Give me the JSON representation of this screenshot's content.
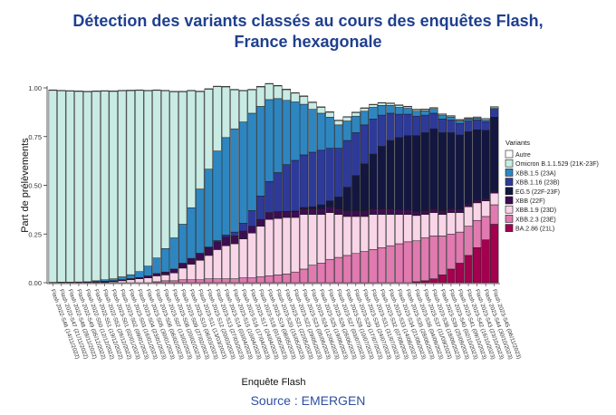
{
  "title_line1": "Détection des variants classés au cours des enquêtes Flash,",
  "title_line2": "France hexagonale",
  "source": "Source : EMERGEN",
  "colors": {
    "Autre": "#ffffff",
    "Omicron B.1.1.529 (21K-23F)": "#C8EBE3",
    "XBB.1.5 (23A)": "#2E86C1",
    "XBB.1.16 (23B)": "#2E3A9A",
    "EG.5 (22F-23F)": "#13173F",
    "XBB (22F)": "#3D0D52",
    "XBB.1.9 (23D)": "#F9D5E8",
    "XBB.2.3 (23E)": "#E07AB0",
    "BA.2.86 (21L)": "#A3004F"
  },
  "chart_data": {
    "type": "bar",
    "stacked": true,
    "xlabel": "Enquête Flash",
    "ylabel": "Part de prélèvements",
    "ylim": [
      0,
      1
    ],
    "yticks": [
      "0.00",
      "0.25",
      "0.50",
      "0.75",
      "1.00"
    ],
    "legend_title": "Variants",
    "legend_position": "right",
    "categories": [
      "Flash 2022-S46 (14/11/2022)",
      "Flash 2022-S47 (21/11/2022)",
      "Flash 2022-S48 (28/11/2022)",
      "Flash 2022-S49 (05/12/2022)",
      "Flash 2022-S50 (12/12/2022)",
      "Flash 2022-S51 (19/12/2022)",
      "Flash 2022-S52 (26/12/2022)",
      "Flash 2023-S01 (02/01/2023)",
      "Flash 2023-S02 (09/01/2023)",
      "Flash 2023-S03 (16/01/2023)",
      "Flash 2023-S04 (23/01/2023)",
      "Flash 2023-S05 (30/01/2023)",
      "Flash 2023-S06 (06/02/2023)",
      "Flash 2023-S07 (13/02/2023)",
      "Flash 2023-S08 (20/02/2023)",
      "Flash 2023-S09 (27/02/2023)",
      "Flash 2023-S10 (06/03/2023)",
      "Flash 2023-S11 (13/03/2023)",
      "Flash 2023-S12 (20/03/2023)",
      "Flash 2023-S13 (27/03/2023)",
      "Flash 2023-S14 (03/04/2023)",
      "Flash 2023-S15 (10/04/2023)",
      "Flash 2023-S16 (17/04/2023)",
      "Flash 2023-S17 (24/04/2023)",
      "Flash 2023-S18 (01/05/2023)",
      "Flash 2023-S19 (08/05/2023)",
      "Flash 2023-S20 (15/05/2023)",
      "Flash 2023-S21 (22/05/2023)",
      "Flash 2023-S22 (29/05/2023)",
      "Flash 2023-S23 (05/06/2023)",
      "Flash 2023-S24 (12/06/2023)",
      "Flash 2023-S25 (19/06/2023)",
      "Flash 2023-S26 (26/06/2023)",
      "Flash 2023-S27 (03/07/2023)",
      "Flash 2023-S28 (10/07/2023)",
      "Flash 2023-S29 (17/07/2023)",
      "Flash 2023-S30 (24/07/2023)",
      "Flash 2023-S31 (31/07/2023)",
      "Flash 2023-S32 (07/08/2023)",
      "Flash 2023-S33 (14/08/2023)",
      "Flash 2023-S34 (21/08/2023)",
      "Flash 2023-S35 (28/08/2023)",
      "Flash 2023-S36 (04/09/2023)",
      "Flash 2023-S37 (11/09/2023)",
      "Flash 2023-S38 (18/09/2023)",
      "Flash 2023-S39 (25/09/2023)",
      "Flash 2023-S40 (02/10/2023)",
      "Flash 2023-S41 (09/10/2023)",
      "Flash 2023-S42 (16/10/2023)",
      "Flash 2023-S43 (23/10/2023)",
      "Flash 2023-S44 (30/10/2023)",
      "Flash 2023-S45 (06/11/2023)"
    ],
    "visible_tick_labels": [
      "Flash 2022-S46 (14/11/2022)",
      "Flash 2022-S47 (21/11/2022)",
      "Flash 2022-S48 (28/11/2022)",
      "Flash 2022-S49 (05/12/2022)",
      "Flash 2022-S50 (12/12/2022)",
      "Flash 2022-S51 (19/12/2022)",
      "Flash 2022-S52 (26/12/2022)",
      "Flash 2023-S01 (02/01/2023)",
      "Flash 2023-S02 (09/01/2023)",
      "Flash 2023-S03 (16/01/2023)",
      "Flash 2023-S04 (23/01/2023)",
      "Flash 2023-S05 (30/01/2023)",
      "Flash 2023-S06 (06/02/2023)",
      "Flash 2023-S07 (13/02/2023)",
      "Flash 2023-S08 (20/02/2023)",
      "Flash 2023-S09 (27/02/2023)",
      "Flash 2023-S10 (06/03/2023)",
      "Flash 2023-S11 (13/03/2023)",
      "Flash 2023-S12 (20/03/2023)",
      "Flash 2023-S13 (27/03/2023)",
      "Flash 2023-S14 (03/04/2023)",
      "Flash 2023-S15 (10/04/2023)",
      "Flash 2023-S16 (17/04/2023)",
      "Flash 2023-S17 (24/04/2023)",
      "Flash 2023-S18 (01/05/2023)",
      "Flash 2023-S19 (08/05/2023)",
      "Flash 2023-S20 (15/05/2023)",
      "Flash 2023-S21 (22/05/2023)",
      "Flash 2023-S22 (29/05/2023)",
      "Flash 2023-S23 (05/06/2023)",
      "Flash 2023-S24 (12/06/2023)",
      "Flash 2023-S25 (19/06/2023)",
      "Flash 2023-S26 (26/06/2023)",
      "Flash 2023-S27 (03/07/2023)",
      "Flash 2023-S28 (10/07/2023)",
      "Flash 2023-S29 (17/07/2023)",
      "Flash 2023-S30 (24/07/2023)",
      "Flash 2023-S31 (31/07/2023)",
      "Flash 2023-S32 (07/08/2023)",
      "Flash 2023-S33 (14/08/2023)",
      "Flash 2023-S34 (21/08/2023)",
      "Flash 2023-S35 (28/08/2023)",
      "Flash 2023-S36 (04/09/2023)",
      "Flash 2023-S37 (11/09/2023)",
      "Flash 2023-S38 (18/09/2023)",
      "Flash 2023-S39 (25/09/2023)",
      "Flash 2023-S40 (02/10/2023)",
      "Flash 2023-S41 (09/10/2023)",
      "Flash 2023-S42 (16/10/2023)",
      "Flash 2023-S43 (23/10/2023)",
      "Flash 2023-S44 (30/10/2023)",
      "Flash 2023-S45 (06/11/2023)"
    ],
    "series": [
      {
        "name": "Autre",
        "values": [
          0.003,
          0.003,
          0.003,
          0.003,
          0.003,
          0.003,
          0.003,
          0.003,
          0.003,
          0.003,
          0.003,
          0.003,
          0.003,
          0.003,
          0.003,
          0.003,
          0.003,
          0.003,
          0.003,
          0.003,
          0.003,
          0.003,
          0.003,
          0.003,
          0.003,
          0.003,
          0.003,
          0.003,
          0.003,
          0.003,
          0.003,
          0.003,
          0.003,
          0.003,
          0.003,
          0.003,
          0.003,
          0.003,
          0.003,
          0.003,
          0.003,
          0.003,
          0.003,
          0.003,
          0.003,
          0.003,
          0.003,
          0.003,
          0.003,
          0.004,
          0.005,
          0.005
        ]
      },
      {
        "name": "Omicron B.1.1.529 (21K-23F)",
        "values": [
          0.985,
          0.982,
          0.98,
          0.978,
          0.975,
          0.972,
          0.968,
          0.962,
          0.955,
          0.945,
          0.93,
          0.9,
          0.86,
          0.81,
          0.75,
          0.68,
          0.6,
          0.5,
          0.41,
          0.33,
          0.26,
          0.2,
          0.16,
          0.12,
          0.1,
          0.08,
          0.065,
          0.055,
          0.045,
          0.04,
          0.035,
          0.03,
          0.025,
          0.022,
          0.02,
          0.018,
          0.015,
          0.013,
          0.012,
          0.01,
          0.01,
          0.008,
          0.008,
          0.007,
          0.006,
          0.006,
          0.005,
          0.005,
          0.004,
          0.004,
          0.004,
          0.004
        ]
      },
      {
        "name": "XBB.1.5 (23A)",
        "values": [
          0.0,
          0.0,
          0.0,
          0.0,
          0.0,
          0.005,
          0.008,
          0.01,
          0.015,
          0.02,
          0.03,
          0.05,
          0.08,
          0.12,
          0.16,
          0.2,
          0.26,
          0.33,
          0.4,
          0.46,
          0.5,
          0.53,
          0.52,
          0.5,
          0.46,
          0.42,
          0.38,
          0.33,
          0.3,
          0.26,
          0.22,
          0.19,
          0.16,
          0.12,
          0.1,
          0.085,
          0.07,
          0.06,
          0.05,
          0.04,
          0.035,
          0.03,
          0.025,
          0.022,
          0.02,
          0.018,
          0.015,
          0.012,
          0.01,
          0.008,
          0.007,
          0.005
        ]
      },
      {
        "name": "XBB.1.16 (23B)",
        "values": [
          0,
          0,
          0,
          0,
          0,
          0,
          0,
          0,
          0,
          0,
          0,
          0,
          0,
          0,
          0,
          0,
          0,
          0.001,
          0.003,
          0.006,
          0.01,
          0.02,
          0.04,
          0.08,
          0.12,
          0.16,
          0.2,
          0.24,
          0.26,
          0.27,
          0.28,
          0.28,
          0.27,
          0.25,
          0.24,
          0.22,
          0.2,
          0.18,
          0.16,
          0.14,
          0.12,
          0.11,
          0.1,
          0.09,
          0.08,
          0.07,
          0.065,
          0.06,
          0.055,
          0.05,
          0.045,
          0.04
        ]
      },
      {
        "name": "EG.5 (22F-23F)",
        "values": [
          0,
          0,
          0,
          0,
          0,
          0,
          0,
          0,
          0,
          0,
          0,
          0,
          0,
          0,
          0,
          0,
          0,
          0,
          0,
          0,
          0,
          0,
          0,
          0,
          0,
          0,
          0,
          0.001,
          0.003,
          0.006,
          0.01,
          0.02,
          0.03,
          0.06,
          0.12,
          0.18,
          0.24,
          0.28,
          0.32,
          0.35,
          0.37,
          0.38,
          0.39,
          0.4,
          0.41,
          0.4,
          0.39,
          0.38,
          0.37,
          0.36,
          0.35,
          0.38
        ]
      },
      {
        "name": "XBB (22F)",
        "values": [
          0.002,
          0.003,
          0.003,
          0.004,
          0.005,
          0.005,
          0.005,
          0.005,
          0.005,
          0.006,
          0.007,
          0.01,
          0.012,
          0.015,
          0.02,
          0.025,
          0.03,
          0.035,
          0.04,
          0.04,
          0.045,
          0.04,
          0.04,
          0.035,
          0.035,
          0.035,
          0.035,
          0.03,
          0.03,
          0.03,
          0.03,
          0.03,
          0.03,
          0.03,
          0.03,
          0.03,
          0.03,
          0.03,
          0.03,
          0.03,
          0.025,
          0.025,
          0.02,
          0.02,
          0.02,
          0.02,
          0.02,
          0.018,
          0.015,
          0.015,
          0.012,
          0.01
        ]
      },
      {
        "name": "XBB.1.9 (23D)",
        "values": [
          0,
          0,
          0,
          0,
          0,
          0,
          0.002,
          0.005,
          0.01,
          0.015,
          0.02,
          0.025,
          0.03,
          0.03,
          0.04,
          0.06,
          0.08,
          0.1,
          0.12,
          0.15,
          0.17,
          0.18,
          0.2,
          0.23,
          0.26,
          0.29,
          0.29,
          0.29,
          0.28,
          0.28,
          0.26,
          0.25,
          0.24,
          0.22,
          0.2,
          0.19,
          0.18,
          0.18,
          0.17,
          0.16,
          0.15,
          0.14,
          0.13,
          0.12,
          0.12,
          0.11,
          0.11,
          0.1,
          0.1,
          0.09,
          0.08,
          0.06
        ]
      },
      {
        "name": "XBB.2.3 (23E)",
        "values": [
          0,
          0,
          0,
          0,
          0,
          0,
          0,
          0,
          0,
          0,
          0,
          0,
          0.005,
          0.01,
          0.01,
          0.015,
          0.015,
          0.015,
          0.02,
          0.02,
          0.02,
          0.02,
          0.025,
          0.025,
          0.03,
          0.035,
          0.04,
          0.045,
          0.055,
          0.07,
          0.09,
          0.1,
          0.12,
          0.13,
          0.14,
          0.15,
          0.16,
          0.17,
          0.18,
          0.19,
          0.2,
          0.21,
          0.21,
          0.22,
          0.22,
          0.2,
          0.18,
          0.16,
          0.15,
          0.14,
          0.12,
          0.1
        ]
      },
      {
        "name": "BA.2.86 (21L)",
        "values": [
          0,
          0,
          0,
          0,
          0,
          0,
          0,
          0,
          0,
          0,
          0,
          0,
          0,
          0,
          0,
          0,
          0,
          0,
          0,
          0,
          0,
          0,
          0,
          0,
          0,
          0,
          0,
          0,
          0,
          0,
          0,
          0,
          0,
          0,
          0,
          0,
          0,
          0,
          0,
          0,
          0,
          0,
          0.005,
          0.01,
          0.02,
          0.04,
          0.07,
          0.1,
          0.14,
          0.18,
          0.22,
          0.3
        ]
      }
    ]
  }
}
